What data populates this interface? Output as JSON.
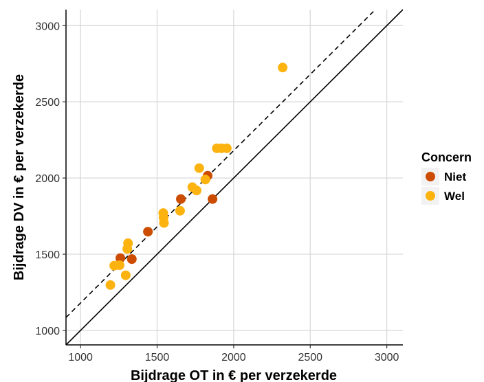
{
  "chart_data": {
    "type": "scatter",
    "xlabel": "Bijdrage OT in  €  per verzekerde",
    "ylabel": "Bijdrage DV in  €  per verzekerde",
    "xlim": [
      905,
      3105
    ],
    "ylim": [
      905,
      3105
    ],
    "x_ticks": [
      "1000",
      "1500",
      "2000",
      "2500",
      "3000"
    ],
    "y_ticks": [
      "1000",
      "1500",
      "2000",
      "2500",
      "3000"
    ],
    "grid": true,
    "legend_position": "right",
    "legend_title": "Concern",
    "reference_lines": [
      {
        "style": "solid",
        "slope": 1,
        "intercept": 0
      },
      {
        "style": "dashed",
        "slope": 1,
        "intercept": 180
      }
    ],
    "series": [
      {
        "name": "Niet",
        "color": "#cc4c02",
        "points": [
          [
            1260,
            1475
          ],
          [
            1335,
            1468
          ],
          [
            1440,
            1648
          ],
          [
            1655,
            1862
          ],
          [
            1830,
            2015
          ],
          [
            1862,
            1862
          ]
        ]
      },
      {
        "name": "Wel",
        "color": "#fdb30f",
        "points": [
          [
            1195,
            1298
          ],
          [
            1220,
            1425
          ],
          [
            1255,
            1428
          ],
          [
            1295,
            1362
          ],
          [
            1305,
            1535
          ],
          [
            1310,
            1572
          ],
          [
            1540,
            1770
          ],
          [
            1542,
            1740
          ],
          [
            1545,
            1705
          ],
          [
            1650,
            1785
          ],
          [
            1730,
            1940
          ],
          [
            1758,
            1918
          ],
          [
            1775,
            2065
          ],
          [
            1815,
            1990
          ],
          [
            1890,
            2195
          ],
          [
            1920,
            2195
          ],
          [
            1955,
            2195
          ],
          [
            2320,
            2725
          ]
        ]
      }
    ]
  }
}
